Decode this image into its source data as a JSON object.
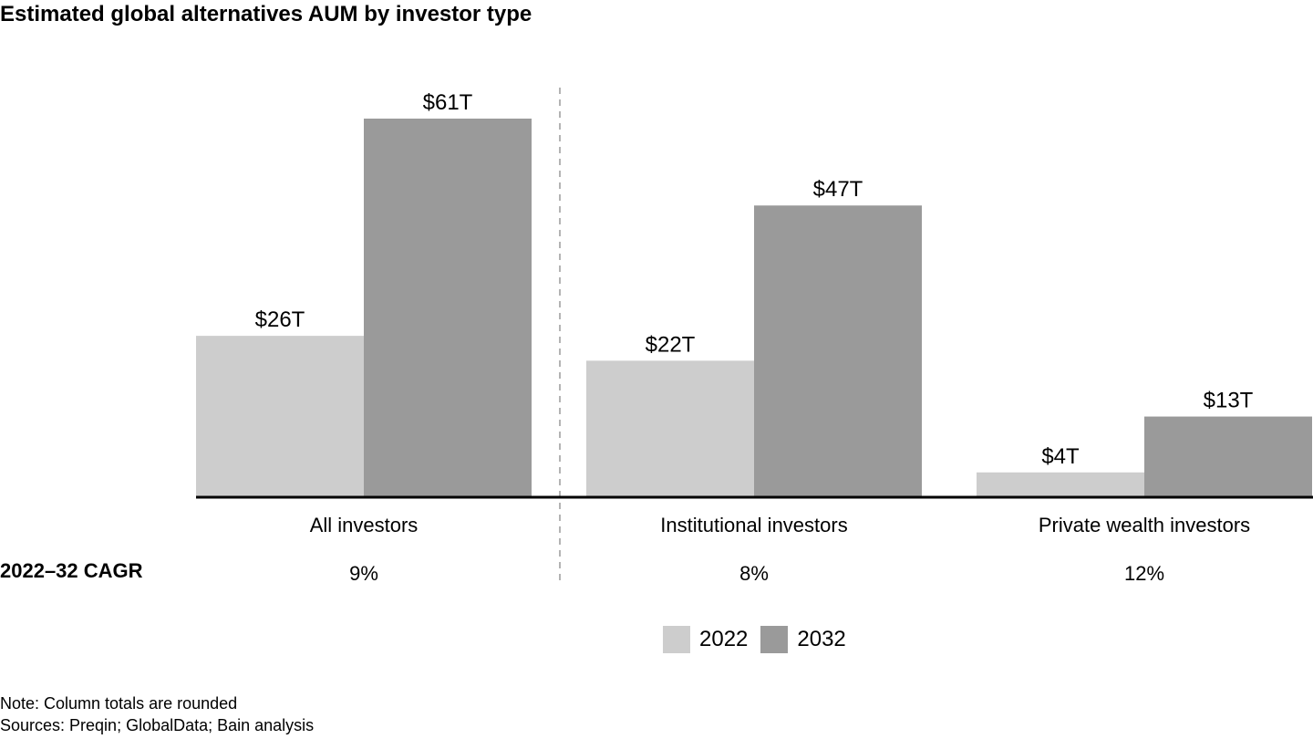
{
  "title": "Estimated global alternatives AUM by investor type",
  "cagr": {
    "label": "2022–32 CAGR",
    "values": [
      "9%",
      "8%",
      "12%"
    ]
  },
  "legend": [
    {
      "label": "2022",
      "color": "#cdcdcd"
    },
    {
      "label": "2032",
      "color": "#9a9a9a"
    }
  ],
  "footer": {
    "note": "Note: Column totals are rounded",
    "sources": "Sources: Preqin; GlobalData; Bain analysis"
  },
  "chart_data": {
    "type": "bar",
    "categories": [
      "All investors",
      "Institutional investors",
      "Private wealth investors"
    ],
    "series": [
      {
        "name": "2022",
        "values": [
          26,
          22,
          4
        ],
        "labels": [
          "$26T",
          "$22T",
          "$4T"
        ],
        "color": "#cdcdcd"
      },
      {
        "name": "2032",
        "values": [
          61,
          47,
          13
        ],
        "labels": [
          "$61T",
          "$47T",
          "$13T"
        ],
        "color": "#9a9a9a"
      }
    ],
    "ylim": [
      0,
      61
    ],
    "grid": false,
    "legend_position": "bottom-right",
    "divider_after_category": 0
  }
}
